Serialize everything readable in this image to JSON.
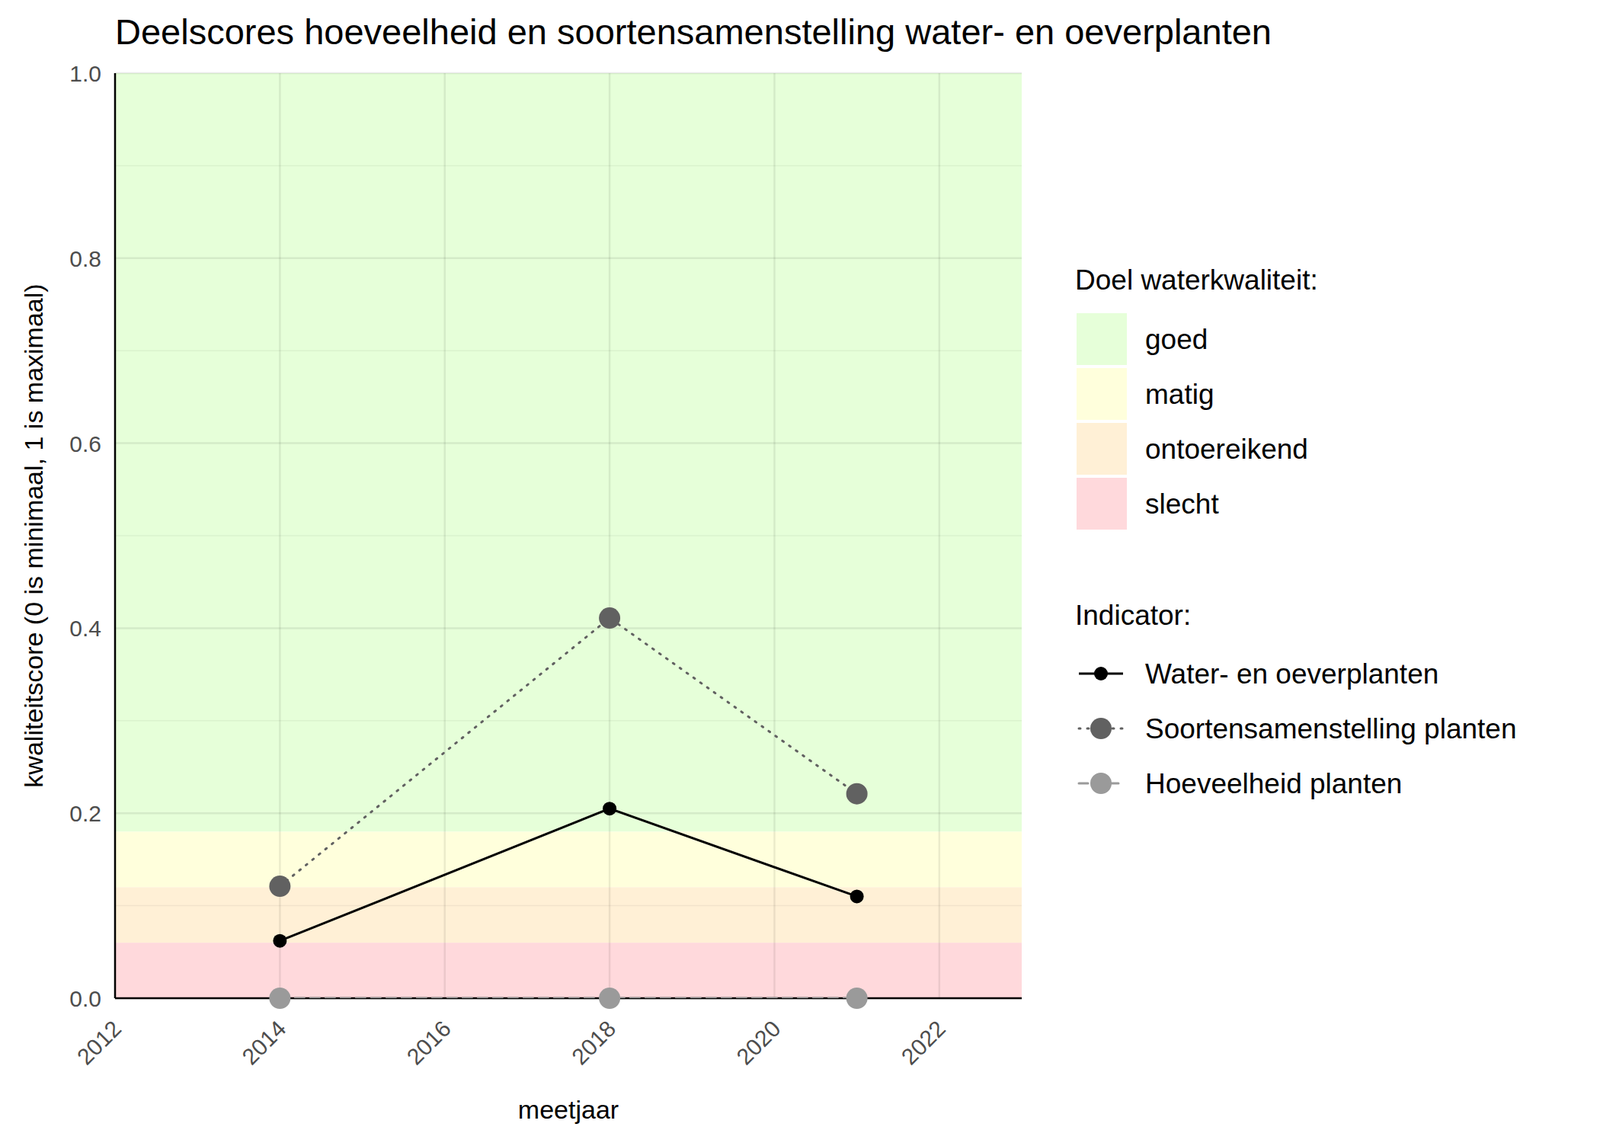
{
  "chart_data": {
    "type": "line",
    "title": "Deelscores hoeveelheid en soortensamenstelling water- en oeverplanten",
    "x_label": "meetjaar",
    "y_label": "kwaliteitscore (0 is minimaal, 1 is maximaal)",
    "x": [
      2014,
      2018,
      2021
    ],
    "xlim": [
      2012,
      2023
    ],
    "xticks": [
      2012,
      2014,
      2016,
      2018,
      2020,
      2022
    ],
    "ylim": [
      0,
      1
    ],
    "yticks": [
      {
        "value": 0,
        "label": "0.0"
      },
      {
        "value": 0.2,
        "label": "0.2"
      },
      {
        "value": 0.4,
        "label": "0.4"
      },
      {
        "value": 0.6,
        "label": "0.6"
      },
      {
        "value": 0.8,
        "label": "0.8"
      },
      {
        "value": 1,
        "label": "1.0"
      }
    ],
    "grid": true,
    "legend": "right",
    "band_legend_title": "Doel waterkwaliteit:",
    "bands": [
      {
        "name": "goed",
        "from": 0.18,
        "to": 1,
        "color": "#e6ffd9"
      },
      {
        "name": "matig",
        "from": 0.12,
        "to": 0.18,
        "color": "#ffffdc"
      },
      {
        "name": "ontoereikend",
        "from": 0.06,
        "to": 0.12,
        "color": "#fff0d6"
      },
      {
        "name": "slecht",
        "from": 0,
        "to": 0.06,
        "color": "#ffd9dc"
      }
    ],
    "series_legend_title": "Indicator:",
    "series": [
      {
        "name": "Water- en oeverplanten",
        "color": "#000000",
        "marker": "dot",
        "line_style": "solid",
        "values": [
          0.062,
          0.205,
          0.11
        ]
      },
      {
        "name": "Soortensamenstelling planten",
        "color": "#616161",
        "marker": "circle",
        "line_style": "dotted",
        "values": [
          0.121,
          0.411,
          0.221
        ]
      },
      {
        "name": "Hoeveelheid planten",
        "color": "#9a9a9a",
        "marker": "circle",
        "line_style": "dashed",
        "values": [
          0,
          0,
          0
        ]
      }
    ]
  }
}
